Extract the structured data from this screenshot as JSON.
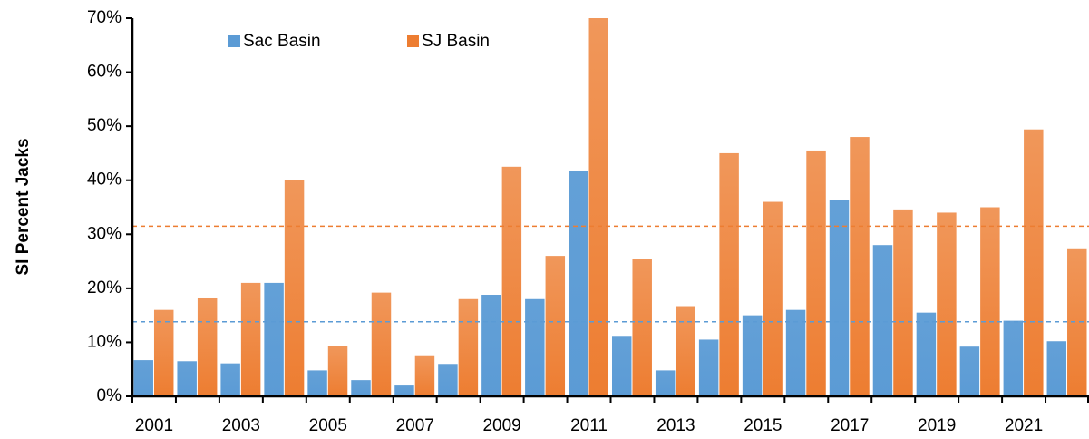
{
  "chart_data": {
    "type": "bar",
    "y_label": "SI Percent Jacks",
    "categories": [
      "2001",
      null,
      "2003",
      null,
      "2005",
      null,
      "2007",
      null,
      "2009",
      null,
      "2011",
      null,
      "2013",
      null,
      "2015",
      null,
      "2017",
      null,
      "2019",
      null,
      "2021",
      null
    ],
    "series": [
      {
        "name": "Sac Basin",
        "color": "#5b9bd5",
        "values": [
          6.7,
          6.5,
          6.1,
          21,
          4.8,
          3,
          2,
          6,
          18.8,
          18,
          41.8,
          11.2,
          4.8,
          10.5,
          15,
          16,
          36.3,
          28,
          15.5,
          9.2,
          14,
          10.2
        ]
      },
      {
        "name": "SJ Basin",
        "color": "#ed7d31",
        "values": [
          16,
          18.3,
          21,
          40,
          9.3,
          19.2,
          7.6,
          18,
          42.5,
          26,
          70,
          25.4,
          16.7,
          45,
          36,
          45.5,
          48,
          34.6,
          34,
          35,
          49.4,
          27.4
        ]
      }
    ],
    "mean_lines": [
      {
        "color": "#5b9bd5",
        "value": 13.8
      },
      {
        "color": "#ed7d31",
        "value": 31.5
      }
    ],
    "ylim": [
      0,
      70
    ],
    "yticks": [
      {
        "value": 0,
        "label": "0%"
      },
      {
        "value": 10,
        "label": "10%"
      },
      {
        "value": 20,
        "label": "20%"
      },
      {
        "value": 30,
        "label": "30%"
      },
      {
        "value": 40,
        "label": "40%"
      },
      {
        "value": 50,
        "label": "50%"
      },
      {
        "value": 60,
        "label": "60%"
      },
      {
        "value": 70,
        "label": "70%"
      }
    ],
    "legend": "top"
  }
}
